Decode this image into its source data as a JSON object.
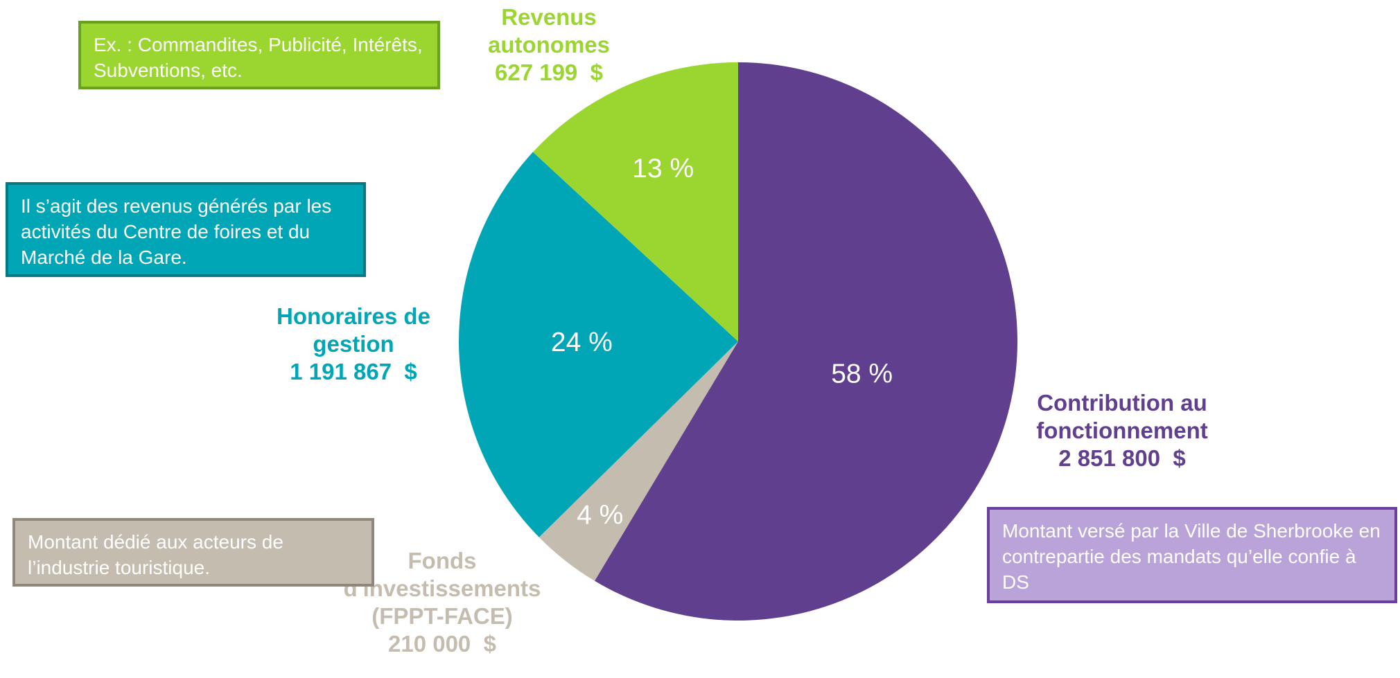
{
  "chart_data": {
    "type": "pie",
    "categories": [
      "Contribution au fonctionnement",
      "Fonds d'investissements (FPPT-FACE)",
      "Honoraires de gestion",
      "Revenus autonomes"
    ],
    "values": [
      58,
      4,
      24,
      13
    ],
    "value_labels": [
      "58 %",
      "4 %",
      "24 %",
      "13 %"
    ],
    "amounts": [
      "2 851 800  $",
      "210 000  $",
      "1 191 867  $",
      "627 199  $"
    ],
    "colors": [
      "#5f3f8e",
      "#c4bcae",
      "#00a6b5",
      "#9bd630"
    ],
    "notes": [
      "Montant versé par la Ville de Sherbrooke en contrepartie des mandats qu’elle confie à DS",
      "Montant dédié aux acteurs de l’industrie touristique.",
      "Il s’agit des revenus générés par les activités du Centre de foires et du Marché de la Gare.",
      "Ex. : Commandites, Publicité, Intérêts, Subventions, etc."
    ],
    "note_colors": [
      "#b9a3d9",
      "#c4bcae",
      "#00a6b5",
      "#9bd630"
    ]
  }
}
